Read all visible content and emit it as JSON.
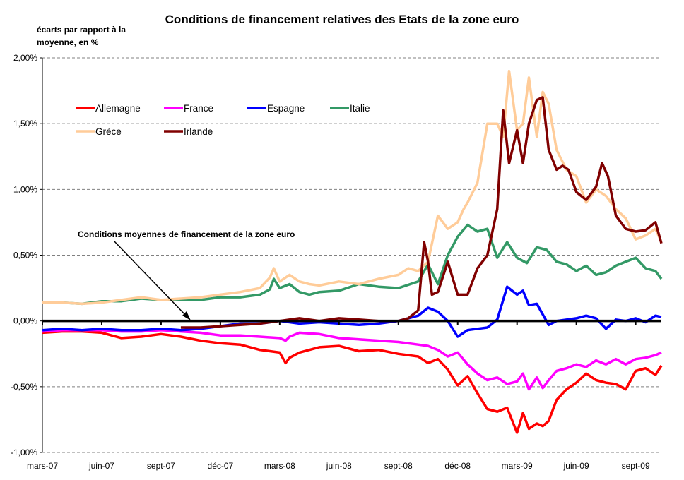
{
  "chart_data": {
    "type": "line",
    "title": "Conditions de financement relatives des Etats de la zone euro",
    "ylabel_lines": [
      "écarts par rapport à la",
      "moyenne, en %"
    ],
    "xlabel": "",
    "ylim": [
      -1.0,
      2.0
    ],
    "yticks": [
      2.0,
      1.5,
      1.0,
      0.5,
      0.0,
      -0.5,
      -1.0
    ],
    "ytick_labels": [
      "2,00%",
      "1,50%",
      "1,00%",
      "0,50%",
      "0,00%",
      "-0,50%",
      "-1,00%"
    ],
    "xtick_labels": [
      "mars-07",
      "juin-07",
      "sept-07",
      "déc-07",
      "mars-08",
      "juin-08",
      "sept-08",
      "déc-08",
      "mars-09",
      "juin-09",
      "sept-09"
    ],
    "x_unit": "months since mars-07",
    "xlim": [
      0,
      31.3
    ],
    "grid": "horizontal dashed",
    "legend_position": "top-left",
    "annotation": {
      "text": "Conditions moyennes de financement de la zone euro",
      "points_to": "zero reference line (euro area average)"
    },
    "reference_line": {
      "name": "Moyenne zone euro",
      "value": 0.0,
      "color": "#000000"
    },
    "series": [
      {
        "name": "Allemagne",
        "color": "#ff0000",
        "x": [
          0,
          1,
          2,
          3,
          4,
          5,
          6,
          7,
          8,
          9,
          10,
          10.5,
          11,
          11.5,
          12,
          12.3,
          12.5,
          13,
          14,
          15,
          16,
          17,
          18,
          19,
          19.5,
          20,
          20.5,
          21,
          21.5,
          22,
          22.5,
          23,
          23.5,
          24,
          24.3,
          24.6,
          25,
          25.3,
          25.6,
          26,
          26.5,
          27,
          27.5,
          28,
          28.5,
          29,
          29.5,
          30,
          30.5,
          31,
          31.3
        ],
        "y": [
          -0.09,
          -0.08,
          -0.08,
          -0.09,
          -0.13,
          -0.12,
          -0.1,
          -0.12,
          -0.15,
          -0.17,
          -0.18,
          -0.2,
          -0.22,
          -0.23,
          -0.24,
          -0.32,
          -0.28,
          -0.24,
          -0.2,
          -0.19,
          -0.23,
          -0.22,
          -0.25,
          -0.27,
          -0.32,
          -0.29,
          -0.37,
          -0.49,
          -0.42,
          -0.55,
          -0.67,
          -0.69,
          -0.66,
          -0.85,
          -0.7,
          -0.82,
          -0.78,
          -0.8,
          -0.76,
          -0.6,
          -0.52,
          -0.47,
          -0.4,
          -0.45,
          -0.47,
          -0.48,
          -0.52,
          -0.38,
          -0.36,
          -0.41,
          -0.34
        ]
      },
      {
        "name": "France",
        "color": "#ff00ff",
        "x": [
          0,
          1,
          2,
          3,
          4,
          5,
          6,
          7,
          8,
          9,
          10,
          11,
          12,
          12.3,
          12.5,
          13,
          14,
          15,
          16,
          17,
          18,
          19,
          19.5,
          20,
          20.5,
          21,
          21.5,
          22,
          22.5,
          23,
          23.5,
          24,
          24.3,
          24.6,
          25,
          25.3,
          25.6,
          26,
          26.5,
          27,
          27.5,
          28,
          28.5,
          29,
          29.5,
          30,
          30.5,
          31,
          31.3
        ],
        "y": [
          -0.08,
          -0.07,
          -0.07,
          -0.07,
          -0.08,
          -0.08,
          -0.07,
          -0.08,
          -0.09,
          -0.11,
          -0.11,
          -0.12,
          -0.13,
          -0.15,
          -0.12,
          -0.09,
          -0.1,
          -0.13,
          -0.14,
          -0.15,
          -0.16,
          -0.18,
          -0.19,
          -0.22,
          -0.27,
          -0.24,
          -0.33,
          -0.4,
          -0.45,
          -0.43,
          -0.48,
          -0.46,
          -0.4,
          -0.52,
          -0.43,
          -0.51,
          -0.45,
          -0.38,
          -0.36,
          -0.33,
          -0.35,
          -0.3,
          -0.33,
          -0.29,
          -0.33,
          -0.29,
          -0.28,
          -0.26,
          -0.24
        ]
      },
      {
        "name": "Espagne",
        "color": "#0000ff",
        "x": [
          0,
          1,
          2,
          3,
          4,
          5,
          6,
          7,
          8,
          9,
          10,
          11,
          12,
          13,
          14,
          15,
          16,
          17,
          18,
          19,
          19.5,
          20,
          20.5,
          21,
          21.5,
          22,
          22.5,
          23,
          23.5,
          24,
          24.3,
          24.6,
          25,
          25.3,
          25.6,
          26,
          26.5,
          27,
          27.5,
          28,
          28.5,
          29,
          29.5,
          30,
          30.5,
          31,
          31.3
        ],
        "y": [
          -0.07,
          -0.06,
          -0.07,
          -0.06,
          -0.07,
          -0.07,
          -0.06,
          -0.07,
          -0.06,
          -0.04,
          -0.02,
          -0.02,
          0.0,
          -0.02,
          -0.01,
          -0.02,
          -0.03,
          -0.02,
          0.0,
          0.04,
          0.1,
          0.07,
          0.0,
          -0.12,
          -0.07,
          -0.06,
          -0.05,
          0.01,
          0.26,
          0.2,
          0.23,
          0.12,
          0.13,
          0.05,
          -0.03,
          0.0,
          0.01,
          0.02,
          0.04,
          0.02,
          -0.06,
          0.01,
          0.0,
          0.02,
          -0.01,
          0.04,
          0.03
        ]
      },
      {
        "name": "Italie",
        "color": "#339966",
        "x": [
          0,
          1,
          2,
          3,
          4,
          5,
          6,
          7,
          8,
          9,
          10,
          11,
          11.5,
          11.7,
          12,
          12.5,
          13,
          13.5,
          14,
          15,
          16,
          17,
          18,
          19,
          19.5,
          20,
          20.5,
          21,
          21.5,
          22,
          22.5,
          23,
          23.5,
          24,
          24.5,
          25,
          25.5,
          26,
          26.5,
          27,
          27.5,
          28,
          28.5,
          29,
          29.5,
          30,
          30.5,
          31,
          31.3
        ],
        "y": [
          0.14,
          0.14,
          0.13,
          0.15,
          0.15,
          0.17,
          0.16,
          0.16,
          0.16,
          0.18,
          0.18,
          0.2,
          0.24,
          0.32,
          0.25,
          0.28,
          0.22,
          0.2,
          0.22,
          0.23,
          0.28,
          0.26,
          0.25,
          0.3,
          0.43,
          0.28,
          0.5,
          0.64,
          0.73,
          0.68,
          0.7,
          0.48,
          0.6,
          0.48,
          0.44,
          0.56,
          0.54,
          0.45,
          0.43,
          0.38,
          0.42,
          0.35,
          0.37,
          0.42,
          0.45,
          0.48,
          0.4,
          0.38,
          0.32
        ]
      },
      {
        "name": "Grèce",
        "color": "#ffcc99",
        "x": [
          0,
          1,
          2,
          3,
          4,
          5,
          6,
          7,
          8,
          9,
          10,
          11,
          11.5,
          11.7,
          12,
          12.5,
          13,
          13.5,
          14,
          15,
          16,
          17,
          18,
          18.5,
          19,
          19.5,
          20,
          20.5,
          21,
          21.3,
          21.5,
          22,
          22.5,
          23,
          23.3,
          23.6,
          24,
          24.3,
          24.6,
          25,
          25.3,
          25.6,
          26,
          26.5,
          27,
          27.5,
          28,
          28.5,
          29,
          29.5,
          30,
          30.5,
          31,
          31.3
        ],
        "y": [
          0.14,
          0.14,
          0.13,
          0.14,
          0.16,
          0.18,
          0.16,
          0.17,
          0.18,
          0.2,
          0.22,
          0.25,
          0.33,
          0.4,
          0.3,
          0.35,
          0.3,
          0.28,
          0.27,
          0.3,
          0.28,
          0.32,
          0.35,
          0.4,
          0.38,
          0.45,
          0.8,
          0.7,
          0.75,
          0.85,
          0.9,
          1.05,
          1.5,
          1.5,
          1.4,
          1.9,
          1.45,
          1.5,
          1.85,
          1.4,
          1.74,
          1.65,
          1.3,
          1.15,
          1.1,
          0.9,
          1.0,
          0.95,
          0.85,
          0.78,
          0.62,
          0.65,
          0.7,
          0.6
        ]
      },
      {
        "name": "Irlande",
        "color": "#800000",
        "x": [
          7,
          8,
          9,
          10,
          11,
          12,
          13,
          14,
          15,
          16,
          17,
          18,
          18.5,
          19,
          19.3,
          19.5,
          19.7,
          20,
          20.5,
          21,
          21.5,
          22,
          22.5,
          23,
          23.3,
          23.6,
          24,
          24.3,
          24.6,
          25,
          25.3,
          25.6,
          26,
          26.3,
          26.6,
          27,
          27.5,
          28,
          28.3,
          28.6,
          29,
          29.5,
          30,
          30.5,
          31,
          31.3
        ],
        "y": [
          -0.05,
          -0.05,
          -0.04,
          -0.03,
          -0.02,
          0.0,
          0.02,
          0.0,
          0.02,
          0.01,
          0.0,
          0.0,
          0.02,
          0.08,
          0.6,
          0.45,
          0.2,
          0.22,
          0.45,
          0.2,
          0.2,
          0.4,
          0.5,
          0.85,
          1.6,
          1.2,
          1.45,
          1.2,
          1.5,
          1.68,
          1.7,
          1.3,
          1.15,
          1.18,
          1.15,
          0.98,
          0.92,
          1.02,
          1.2,
          1.1,
          0.8,
          0.7,
          0.68,
          0.69,
          0.75,
          0.59
        ]
      }
    ]
  }
}
